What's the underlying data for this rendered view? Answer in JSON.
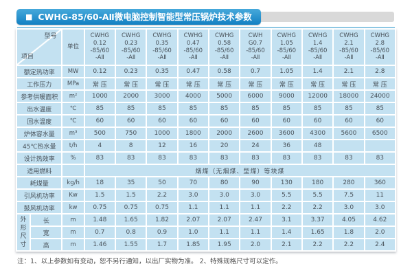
{
  "title": {
    "bullet": "■",
    "text": "CWHG-85/60-AⅡ微电脑控制智能型常压锅炉技术参数"
  },
  "note": "注：1、以上参数如有变动，恕不另行通知，以出厂实物为准。 2、特殊规格尺寸可以定作。",
  "colors": {
    "cell_bg": "#c3e1f1",
    "grid": "#ffffff",
    "title_blue_top": "#46a9db",
    "title_blue_bottom": "#1280c2",
    "title_strip_gray": "#d9d9d9",
    "cell_text": "#49525a"
  },
  "table": {
    "corner": {
      "top_right": "型号",
      "bottom_left": "项目"
    },
    "unit_header": "单位",
    "model_headers": [
      [
        "CWHG",
        "0.12",
        "-85/60",
        "-AⅡ"
      ],
      [
        "CWHG",
        "0.23",
        "-85/60",
        "-AⅡ"
      ],
      [
        "CWHG",
        "0.35",
        "-85/60",
        "-AⅡ"
      ],
      [
        "CWHG",
        "0.47",
        "-85/60",
        "-AⅡ"
      ],
      [
        "CWHG",
        "0.58",
        "-85/60",
        "-AⅡ"
      ],
      [
        "CWH",
        "G0.7",
        "-85/60",
        "-AⅡ"
      ],
      [
        "CWHG",
        "1.05",
        "-85/60",
        "-AⅡ"
      ],
      [
        "CWHG",
        "1.4",
        "-85/60",
        "-AⅡ"
      ],
      [
        "CWHG",
        "2.1",
        "-85/60",
        "-AⅡ"
      ],
      [
        "CWHG",
        "2.8",
        "-85/60",
        "-AⅡ"
      ]
    ],
    "rows": [
      {
        "label": "额定热功率",
        "unit": "MW",
        "values": [
          "0.12",
          "0.23",
          "0.35",
          "0.47",
          "0.58",
          "0.7",
          "1.05",
          "1.4",
          "2.1",
          "2.8"
        ]
      },
      {
        "label": "工作压力",
        "unit": "MPa",
        "values": [
          "常 压",
          "常 压",
          "常 压",
          "常 压",
          "常 压",
          "常 压",
          "常 压",
          "常 压",
          "常 压",
          "常 压"
        ]
      },
      {
        "label": "参考供暖面积",
        "unit": "m²",
        "values": [
          "1000",
          "2000",
          "3000",
          "4000",
          "5000",
          "6000",
          "9000",
          "12000",
          "18000",
          "24000"
        ]
      },
      {
        "label": "出水温度",
        "unit": "℃",
        "values": [
          "85",
          "85",
          "85",
          "85",
          "85",
          "85",
          "85",
          "85",
          "85",
          "85"
        ]
      },
      {
        "label": "回水温度",
        "unit": "℃",
        "values": [
          "60",
          "60",
          "60",
          "60",
          "60",
          "60",
          "60",
          "60",
          "60",
          "60"
        ]
      },
      {
        "label": "炉体容水量",
        "unit": "m³",
        "values": [
          "500",
          "750",
          "1000",
          "1800",
          "2000",
          "2600",
          "3600",
          "4300",
          "5600",
          "6500"
        ]
      },
      {
        "label": "45℃热水量",
        "unit": "t/h",
        "values": [
          "4",
          "8",
          "12",
          "16",
          "20",
          "24",
          "36",
          "48",
          "",
          ""
        ]
      },
      {
        "label": "设计热效率",
        "unit": "%",
        "values": [
          "83",
          "83",
          "83",
          "83",
          "83",
          "83",
          "83",
          "83",
          "83",
          "83"
        ]
      },
      {
        "label": "适用燃料",
        "unit": "",
        "span_text": "烟煤（无烟煤、型煤）等块煤"
      },
      {
        "label": "耗煤量",
        "unit": "kg/h",
        "values": [
          "18",
          "35",
          "50",
          "70",
          "80",
          "90",
          "130",
          "180",
          "280",
          "360"
        ]
      },
      {
        "label": "引风机功率",
        "unit": "Kw",
        "values": [
          "1.5",
          "1.5",
          "2.2",
          "3.0",
          "3.0",
          "3.0",
          "5.5",
          "5.5",
          "7.5",
          "11"
        ]
      },
      {
        "label": "鼓风机功率",
        "unit": "kw",
        "values": [
          "0.75",
          "0.75",
          "0.75",
          "1.1",
          "1.1",
          "1.1",
          "2.2",
          "2.2",
          "3.0",
          "3.0"
        ]
      }
    ],
    "dimension_group": {
      "label": "外形尺寸",
      "rows": [
        {
          "label": "长",
          "unit": "m",
          "values": [
            "1.48",
            "1.65",
            "1.82",
            "2.07",
            "2.07",
            "2.47",
            "3.1",
            "3.37",
            "4.05",
            "4.62"
          ]
        },
        {
          "label": "宽",
          "unit": "m",
          "values": [
            "0.7",
            "0.8",
            "0.9",
            "1.0",
            "1.1",
            "1.1",
            "1.4",
            "1.65",
            "1.8",
            "2.0"
          ]
        },
        {
          "label": "高",
          "unit": "m",
          "values": [
            "1.46",
            "1.55",
            "1.7",
            "1.85",
            "1.95",
            "2.0",
            "2.1",
            "2.2",
            "2.2",
            "2.4"
          ]
        }
      ]
    }
  }
}
